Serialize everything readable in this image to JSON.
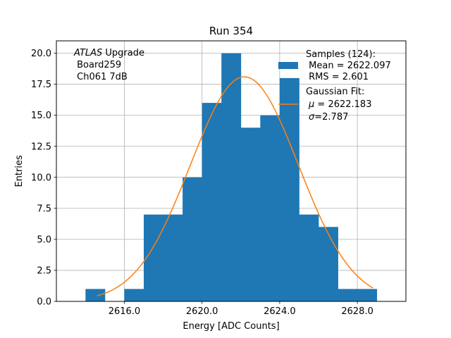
{
  "chart_data": {
    "type": "bar",
    "title": "Run 354",
    "xlabel": "Energy [ADC Counts]",
    "ylabel": "Entries",
    "xlim": [
      2612.5,
      2630.5
    ],
    "ylim": [
      0,
      21
    ],
    "x_ticks": [
      2616,
      2620,
      2624,
      2628
    ],
    "x_tick_labels": [
      "2616.0",
      "2620.0",
      "2624.0",
      "2628.0"
    ],
    "y_ticks": [
      0,
      2.5,
      5,
      7.5,
      10,
      12.5,
      15,
      17.5,
      20
    ],
    "y_tick_labels": [
      "0.0",
      "2.5",
      "5.0",
      "7.5",
      "10.0",
      "12.5",
      "15.0",
      "17.5",
      "20.0"
    ],
    "grid": true,
    "bin_width": 1,
    "bin_edges": [
      2614,
      2615,
      2616,
      2617,
      2618,
      2619,
      2620,
      2621,
      2622,
      2623,
      2624,
      2625,
      2626,
      2627,
      2628,
      2629
    ],
    "histogram_values": [
      1,
      0,
      1,
      7,
      7,
      10,
      16,
      20,
      14,
      15,
      18,
      7,
      6,
      1,
      1
    ],
    "bar_color": "#1f77b4",
    "fit": {
      "type": "gaussian",
      "mu": 2622.183,
      "sigma": 2.787,
      "amplitude": 18.1,
      "x_range": [
        2614.6,
        2628.8
      ],
      "color": "#ff7f0e"
    },
    "annotation": {
      "italic_part": "ATLAS",
      "line1_rest": " Upgrade",
      "line2": " Board259",
      "line3": " Ch061 7dB"
    },
    "legend": {
      "placement": "top-right",
      "hist_line1": "Samples (124):",
      "hist_line2": " Mean = 2622.097",
      "hist_line3": " RMS = 2.601",
      "fit_line1": "Gaussian Fit:",
      "fit_line2_sym": "μ",
      "fit_line2_rest": " = 2622.183",
      "fit_line3_sym": "σ",
      "fit_line3_rest": "=2.787"
    }
  }
}
